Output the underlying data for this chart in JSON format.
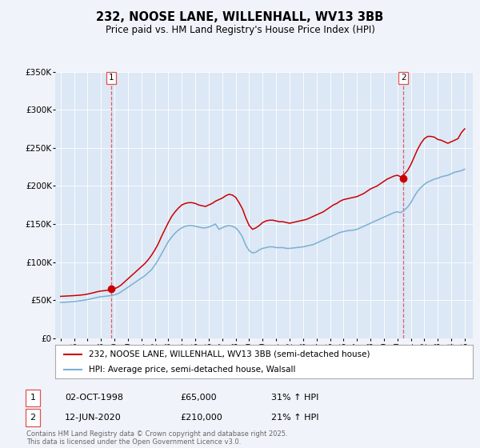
{
  "title": "232, NOOSE LANE, WILLENHALL, WV13 3BB",
  "subtitle": "Price paid vs. HM Land Registry's House Price Index (HPI)",
  "legend_line1": "232, NOOSE LANE, WILLENHALL, WV13 3BB (semi-detached house)",
  "legend_line2": "HPI: Average price, semi-detached house, Walsall",
  "sale1_date": "02-OCT-1998",
  "sale1_price": 65000,
  "sale1_label": "31% ↑ HPI",
  "sale2_date": "12-JUN-2020",
  "sale2_price": 210000,
  "sale2_label": "21% ↑ HPI",
  "sale1_x": 1998.75,
  "sale2_x": 2020.45,
  "ylabel_ticks": [
    "£0",
    "£50K",
    "£100K",
    "£150K",
    "£200K",
    "£250K",
    "£300K",
    "£350K"
  ],
  "ylabel_values": [
    0,
    50000,
    100000,
    150000,
    200000,
    250000,
    300000,
    350000
  ],
  "background_color": "#f0f4fa",
  "plot_bg_color": "#dce8f5",
  "line1_color": "#cc0000",
  "line2_color": "#7ab0d4",
  "vline_color": "#e05050",
  "marker_color": "#cc0000",
  "footnote": "Contains HM Land Registry data © Crown copyright and database right 2025.\nThis data is licensed under the Open Government Licence v3.0.",
  "hpi_years": [
    1995.0,
    1995.25,
    1995.5,
    1995.75,
    1996.0,
    1996.25,
    1996.5,
    1996.75,
    1997.0,
    1997.25,
    1997.5,
    1997.75,
    1998.0,
    1998.25,
    1998.5,
    1998.75,
    1999.0,
    1999.25,
    1999.5,
    1999.75,
    2000.0,
    2000.25,
    2000.5,
    2000.75,
    2001.0,
    2001.25,
    2001.5,
    2001.75,
    2002.0,
    2002.25,
    2002.5,
    2002.75,
    2003.0,
    2003.25,
    2003.5,
    2003.75,
    2004.0,
    2004.25,
    2004.5,
    2004.75,
    2005.0,
    2005.25,
    2005.5,
    2005.75,
    2006.0,
    2006.25,
    2006.5,
    2006.75,
    2007.0,
    2007.25,
    2007.5,
    2007.75,
    2008.0,
    2008.25,
    2008.5,
    2008.75,
    2009.0,
    2009.25,
    2009.5,
    2009.75,
    2010.0,
    2010.25,
    2010.5,
    2010.75,
    2011.0,
    2011.25,
    2011.5,
    2011.75,
    2012.0,
    2012.25,
    2012.5,
    2012.75,
    2013.0,
    2013.25,
    2013.5,
    2013.75,
    2014.0,
    2014.25,
    2014.5,
    2014.75,
    2015.0,
    2015.25,
    2015.5,
    2015.75,
    2016.0,
    2016.25,
    2016.5,
    2016.75,
    2017.0,
    2017.25,
    2017.5,
    2017.75,
    2018.0,
    2018.25,
    2018.5,
    2018.75,
    2019.0,
    2019.25,
    2019.5,
    2019.75,
    2020.0,
    2020.25,
    2020.5,
    2020.75,
    2021.0,
    2021.25,
    2021.5,
    2021.75,
    2022.0,
    2022.25,
    2022.5,
    2022.75,
    2023.0,
    2023.25,
    2023.5,
    2023.75,
    2024.0,
    2024.25,
    2024.5,
    2024.75,
    2025.0
  ],
  "hpi_values": [
    47000,
    47200,
    47500,
    47800,
    48200,
    48700,
    49300,
    50000,
    50800,
    51700,
    52700,
    53800,
    54500,
    55000,
    55500,
    56000,
    57000,
    58500,
    61000,
    64000,
    67000,
    70000,
    73000,
    76000,
    79000,
    82000,
    86000,
    90000,
    96000,
    103000,
    111000,
    119000,
    127000,
    133000,
    138000,
    142000,
    145000,
    147000,
    148000,
    148000,
    147000,
    146000,
    145000,
    145000,
    146000,
    148000,
    150000,
    143000,
    145000,
    147000,
    148000,
    147000,
    145000,
    140000,
    133000,
    122000,
    115000,
    112000,
    113000,
    116000,
    118000,
    119000,
    120000,
    120000,
    119000,
    119000,
    119000,
    118000,
    118000,
    118500,
    119000,
    119500,
    120000,
    121000,
    122000,
    123000,
    125000,
    127000,
    129000,
    131000,
    133000,
    135000,
    137000,
    139000,
    140000,
    141000,
    141500,
    142000,
    143000,
    145000,
    147000,
    149000,
    151000,
    153000,
    155000,
    157000,
    159000,
    161000,
    163000,
    165000,
    166000,
    165000,
    168000,
    172000,
    178000,
    186000,
    193000,
    198000,
    202000,
    205000,
    207000,
    209000,
    210000,
    212000,
    213000,
    214000,
    216000,
    218000,
    219000,
    220000,
    222000
  ],
  "prop_years": [
    1995.0,
    1995.25,
    1995.5,
    1995.75,
    1996.0,
    1996.25,
    1996.5,
    1996.75,
    1997.0,
    1997.25,
    1997.5,
    1997.75,
    1998.0,
    1998.25,
    1998.5,
    1998.75,
    1999.0,
    1999.25,
    1999.5,
    1999.75,
    2000.0,
    2000.25,
    2000.5,
    2000.75,
    2001.0,
    2001.25,
    2001.5,
    2001.75,
    2002.0,
    2002.25,
    2002.5,
    2002.75,
    2003.0,
    2003.25,
    2003.5,
    2003.75,
    2004.0,
    2004.25,
    2004.5,
    2004.75,
    2005.0,
    2005.25,
    2005.5,
    2005.75,
    2006.0,
    2006.25,
    2006.5,
    2006.75,
    2007.0,
    2007.25,
    2007.5,
    2007.75,
    2008.0,
    2008.25,
    2008.5,
    2008.75,
    2009.0,
    2009.25,
    2009.5,
    2009.75,
    2010.0,
    2010.25,
    2010.5,
    2010.75,
    2011.0,
    2011.25,
    2011.5,
    2011.75,
    2012.0,
    2012.25,
    2012.5,
    2012.75,
    2013.0,
    2013.25,
    2013.5,
    2013.75,
    2014.0,
    2014.25,
    2014.5,
    2014.75,
    2015.0,
    2015.25,
    2015.5,
    2015.75,
    2016.0,
    2016.25,
    2016.5,
    2016.75,
    2017.0,
    2017.25,
    2017.5,
    2017.75,
    2018.0,
    2018.25,
    2018.5,
    2018.75,
    2019.0,
    2019.25,
    2019.5,
    2019.75,
    2020.0,
    2020.25,
    2020.5,
    2020.75,
    2021.0,
    2021.25,
    2021.5,
    2021.75,
    2022.0,
    2022.25,
    2022.5,
    2022.75,
    2023.0,
    2023.25,
    2023.5,
    2023.75,
    2024.0,
    2024.25,
    2024.5,
    2024.75,
    2025.0
  ],
  "prop_values": [
    55000,
    55200,
    55500,
    55700,
    56000,
    56300,
    56700,
    57200,
    58000,
    59000,
    60000,
    61200,
    62000,
    62500,
    63000,
    63500,
    65000,
    67000,
    70000,
    74000,
    78000,
    82000,
    86000,
    90000,
    94000,
    98000,
    103000,
    109000,
    116000,
    124000,
    134000,
    143000,
    152000,
    160000,
    166000,
    171000,
    175000,
    177000,
    178000,
    178000,
    177000,
    175000,
    174000,
    173000,
    175000,
    177000,
    180000,
    182000,
    184000,
    187000,
    189000,
    188000,
    185000,
    178000,
    170000,
    158000,
    148000,
    143000,
    145000,
    148000,
    152000,
    154000,
    155000,
    155000,
    154000,
    153000,
    153000,
    152000,
    151000,
    152000,
    153000,
    154000,
    155000,
    156000,
    158000,
    160000,
    162000,
    164000,
    166000,
    169000,
    172000,
    175000,
    177000,
    180000,
    182000,
    183000,
    184000,
    185000,
    186000,
    188000,
    190000,
    193000,
    196000,
    198000,
    200000,
    203000,
    206000,
    209000,
    211000,
    213000,
    214000,
    212000,
    215000,
    220000,
    228000,
    238000,
    248000,
    256000,
    262000,
    265000,
    265000,
    264000,
    261000,
    260000,
    258000,
    256000,
    258000,
    260000,
    262000,
    270000,
    275000
  ]
}
